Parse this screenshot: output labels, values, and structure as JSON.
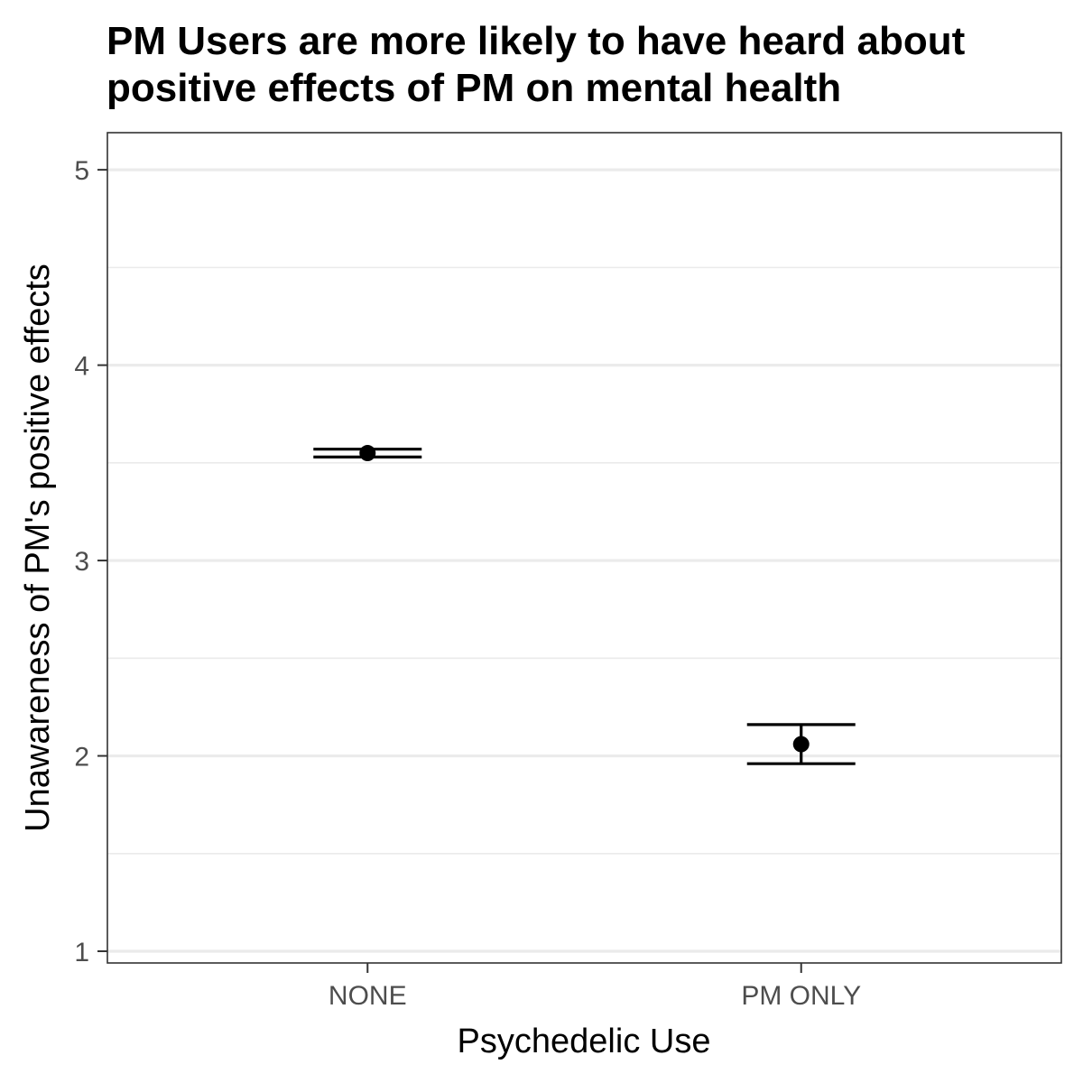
{
  "chart_data": {
    "type": "scatter",
    "title_lines": [
      "PM Users are more likely to have heard about",
      "positive effects of PM on mental health"
    ],
    "xlabel": "Psychedelic Use",
    "ylabel": "Unawareness of PM's positive effects",
    "categories": [
      "NONE",
      "PM ONLY"
    ],
    "series": [
      {
        "values": [
          3.55,
          2.06
        ],
        "error_low": [
          3.53,
          1.96
        ],
        "error_high": [
          3.57,
          2.16
        ]
      }
    ],
    "ylim": [
      0.94,
      5.19
    ],
    "yticks": [
      1,
      2,
      3,
      4,
      5
    ],
    "grid": true,
    "colors": {
      "point": "#000000",
      "grid": "#ebebeb",
      "panel_border": "#333333",
      "tick_label": "#4d4d4d"
    }
  }
}
